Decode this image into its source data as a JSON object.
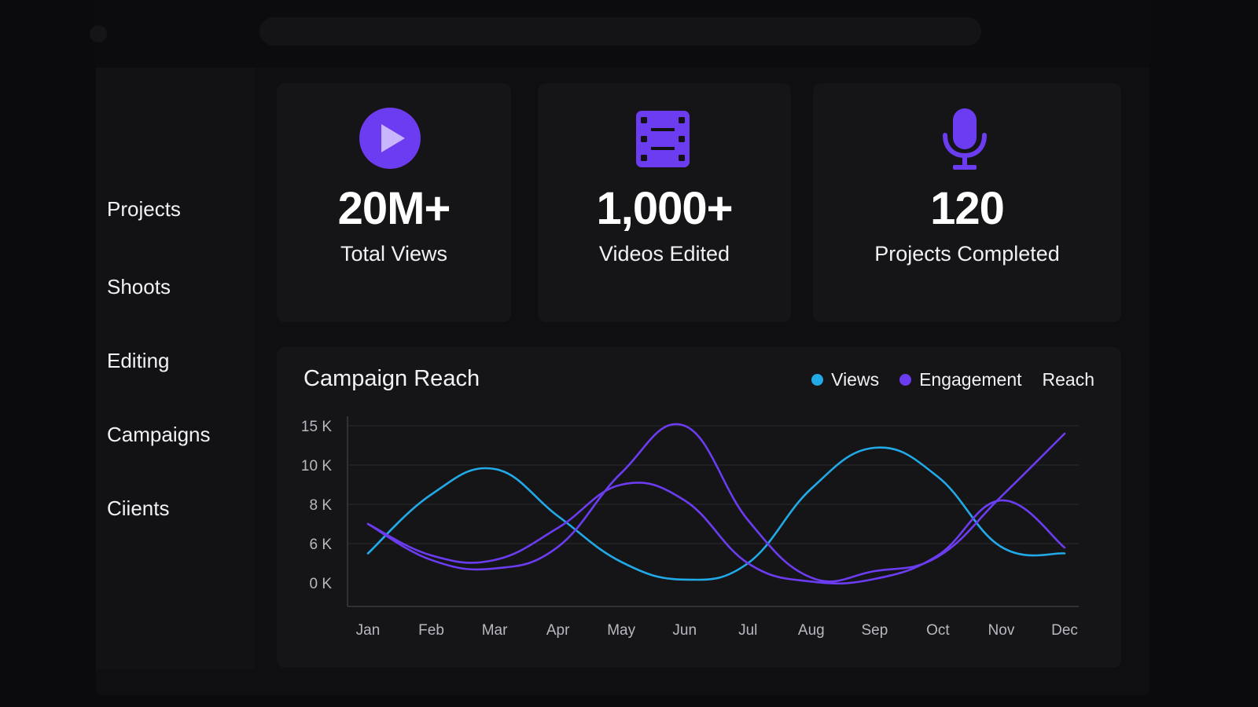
{
  "sidebar": {
    "items": [
      {
        "label": "Projects"
      },
      {
        "label": "Shoots"
      },
      {
        "label": "Editing"
      },
      {
        "label": "Campaigns"
      },
      {
        "label": "Ciients"
      }
    ]
  },
  "stats": [
    {
      "icon": "play-icon",
      "value": "20M+",
      "label": "Total Views",
      "color": "#6b3cf0"
    },
    {
      "icon": "film-icon",
      "value": "1,000+",
      "label": "Videos Edited",
      "color": "#6b3cf0"
    },
    {
      "icon": "microphone-icon",
      "value": "120",
      "label": "Projects Completed",
      "color": "#6b3cf0"
    }
  ],
  "chart": {
    "title": "Campaign Reach",
    "legend": [
      {
        "name": "Views",
        "color": "#22a9e8"
      },
      {
        "name": "Engagement",
        "color": "#6b3cf0"
      },
      {
        "name": "Reach",
        "color": ""
      }
    ]
  },
  "chart_data": {
    "type": "line",
    "title": "Campaign Reach",
    "categories": [
      "Jan",
      "Feb",
      "Mar",
      "Apr",
      "May",
      "Jun",
      "Jul",
      "Aug",
      "Sep",
      "Oct",
      "Nov",
      "Dec"
    ],
    "y_ticks": [
      {
        "label": "0 K",
        "value": 0
      },
      {
        "label": "6 K",
        "value": 6
      },
      {
        "label": "8 K",
        "value": 8
      },
      {
        "label": "10 K",
        "value": 10
      },
      {
        "label": "15 K",
        "value": 15
      }
    ],
    "grid": true,
    "legend_position": "top-right",
    "series": [
      {
        "name": "Views",
        "color": "#22a9e8",
        "values": [
          4.5,
          8.5,
          9.8,
          7.4,
          3.2,
          0.5,
          3.0,
          8.8,
          12.2,
          9.4,
          5.5,
          4.5
        ]
      },
      {
        "name": "Engagement",
        "color": "#6b3cf0",
        "values": [
          7.0,
          3.5,
          2.2,
          5.5,
          9.6,
          15.0,
          7.2,
          0.8,
          1.8,
          4.0,
          8.4,
          14.0
        ]
      },
      {
        "name": "",
        "color": "#6b3cf0",
        "values": [
          7.0,
          4.2,
          3.5,
          6.8,
          9.0,
          8.2,
          3.0,
          0.2,
          0.6,
          4.2,
          8.2,
          5.4
        ]
      }
    ]
  }
}
